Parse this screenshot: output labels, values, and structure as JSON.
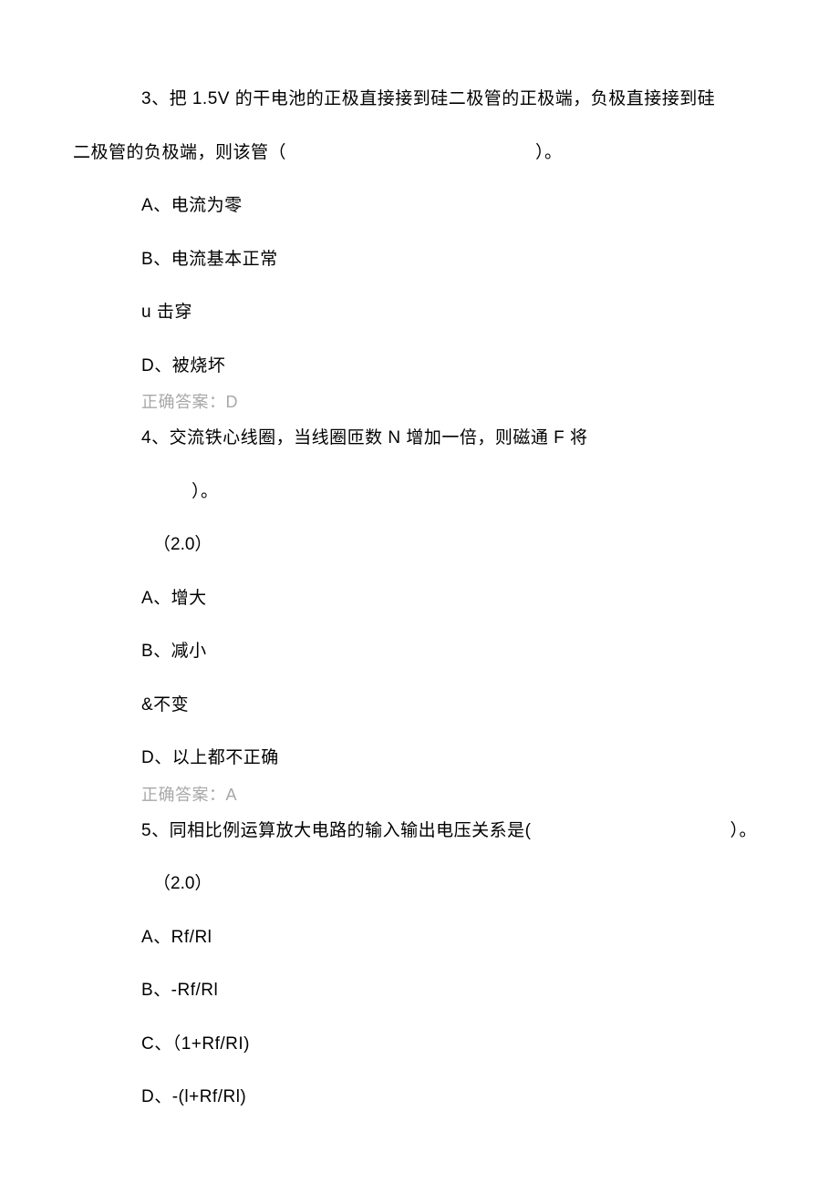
{
  "text_color": "#000000",
  "answer_color": "#a8a8a8",
  "background_color": "#ffffff",
  "body_fontsize": 19,
  "answer_fontsize": 18,
  "q3": {
    "line1": "3、把 1.5V 的干电池的正极直接接到硅二极管的正极端，负极直接接到硅",
    "line2": "二极管的负极端，则该管（　　　　　　　　　　　　　　）。",
    "options": {
      "A": "A、电流为零",
      "B": "B、电流基本正常",
      "C": "u 击穿",
      "D": "D、被烧坏"
    },
    "answer_label": "正确答案：",
    "answer_letter": "D"
  },
  "q4": {
    "line1": "4、交流铁心线圈，当线圈匝数 N 增加一倍，则磁通 F 将",
    "line2": "）。",
    "points": "（2.0）",
    "options": {
      "A": "A、增大",
      "B": "B、减小",
      "C": "&不变",
      "D": "D、以上都不正确"
    },
    "answer_label": "正确答案：",
    "answer_letter": "A"
  },
  "q5": {
    "text": "5、同相比例运算放大电路的输入输出电压关系是(",
    "paren_close": "）。",
    "points": "（2.0）",
    "options": {
      "A": "A、Rf/Rl",
      "B": "B、-Rf/Rl",
      "C": "C、（1+Rf/RI)",
      "D": "D、-(l+Rf/Rl)"
    }
  }
}
